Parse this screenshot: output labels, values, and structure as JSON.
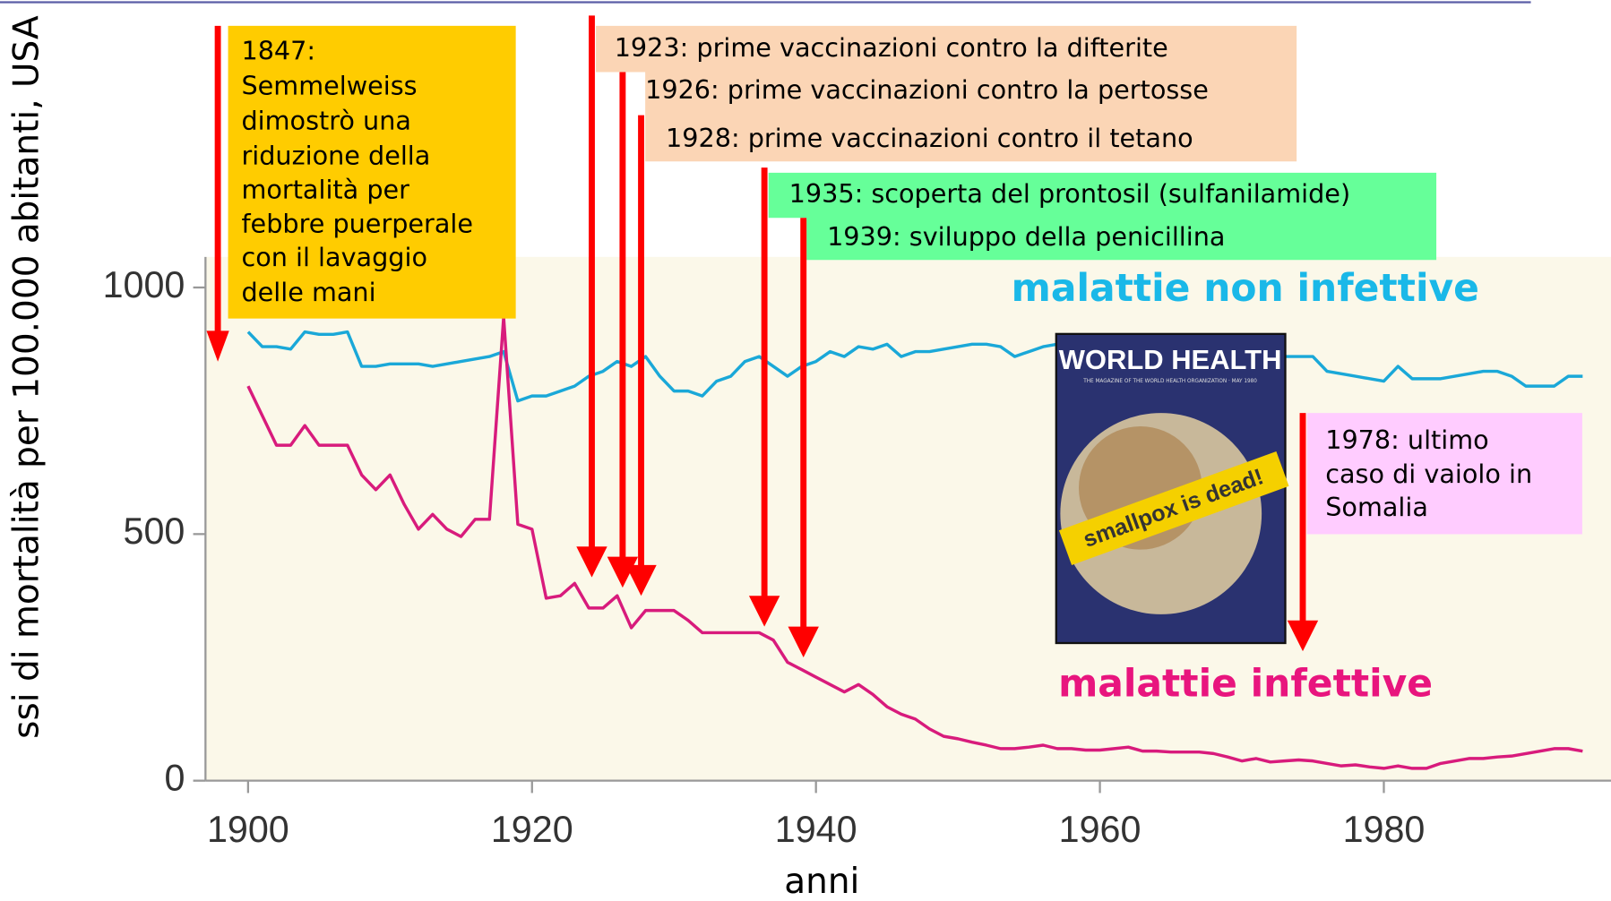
{
  "chart_data": {
    "type": "line",
    "y_label": "ssi di mortalità per 100.000 abitanti, USA",
    "x_label": "anni",
    "x": [
      1900,
      1901,
      1902,
      1903,
      1904,
      1905,
      1906,
      1907,
      1908,
      1909,
      1910,
      1911,
      1912,
      1913,
      1914,
      1915,
      1916,
      1917,
      1918,
      1919,
      1920,
      1921,
      1922,
      1923,
      1924,
      1925,
      1926,
      1927,
      1928,
      1929,
      1930,
      1931,
      1932,
      1933,
      1934,
      1935,
      1936,
      1937,
      1938,
      1939,
      1940,
      1941,
      1942,
      1943,
      1944,
      1945,
      1946,
      1947,
      1948,
      1949,
      1950,
      1951,
      1952,
      1953,
      1954,
      1955,
      1956,
      1957,
      1958,
      1959,
      1960,
      1961,
      1962,
      1963,
      1964,
      1965,
      1966,
      1967,
      1968,
      1969,
      1970,
      1971,
      1972,
      1973,
      1974,
      1975,
      1976,
      1977,
      1978,
      1979,
      1980,
      1981,
      1982,
      1983,
      1984,
      1985,
      1986,
      1987,
      1988,
      1989,
      1990,
      1991,
      1992,
      1993,
      1994
    ],
    "series": [
      {
        "name": "malattie non infettive",
        "color": "#1aa8d8",
        "values": [
          910,
          880,
          880,
          875,
          910,
          905,
          905,
          910,
          840,
          840,
          845,
          845,
          845,
          840,
          845,
          850,
          855,
          860,
          870,
          770,
          780,
          780,
          790,
          800,
          820,
          830,
          850,
          840,
          860,
          820,
          790,
          790,
          780,
          810,
          820,
          850,
          860,
          840,
          820,
          840,
          850,
          870,
          860,
          880,
          875,
          885,
          860,
          870,
          870,
          875,
          880,
          885,
          885,
          880,
          860,
          870,
          880,
          885,
          880,
          880,
          875,
          870,
          870,
          865,
          865,
          860,
          860,
          860,
          860,
          860,
          860,
          860,
          860,
          860,
          860,
          860,
          830,
          825,
          820,
          815,
          810,
          840,
          815,
          815,
          815,
          820,
          825,
          830,
          830,
          820,
          800,
          800,
          800,
          820,
          820
        ]
      },
      {
        "name": "malattie infettive",
        "color": "#d81b7c",
        "values": [
          800,
          740,
          680,
          680,
          720,
          680,
          680,
          680,
          620,
          590,
          620,
          560,
          510,
          540,
          510,
          495,
          530,
          530,
          940,
          520,
          510,
          370,
          375,
          400,
          350,
          350,
          375,
          310,
          345,
          345,
          345,
          325,
          300,
          300,
          300,
          300,
          300,
          285,
          240,
          225,
          210,
          195,
          180,
          195,
          175,
          150,
          135,
          125,
          105,
          90,
          85,
          78,
          72,
          65,
          65,
          68,
          72,
          65,
          65,
          62,
          62,
          65,
          68,
          60,
          60,
          58,
          58,
          58,
          55,
          48,
          40,
          45,
          38,
          40,
          42,
          40,
          35,
          30,
          32,
          28,
          25,
          30,
          25,
          25,
          35,
          40,
          45,
          45,
          48,
          50,
          55,
          60,
          65,
          65,
          60
        ]
      }
    ],
    "xlim": [
      1897,
      1996
    ],
    "xticks": [
      1900,
      1920,
      1940,
      1960,
      1980
    ],
    "ylim": [
      0,
      1062
    ],
    "yticks": [
      0,
      500,
      1000
    ],
    "annotations": [
      {
        "lines": [
          "1847:",
          "Semmelweiss",
          "dimostrò una",
          "riduzione della",
          "mortalità per",
          "febbre puerperale",
          "con il lavaggio",
          "delle mani"
        ]
      },
      {
        "lines": [
          "1923: prime vaccinazioni contro la difterite",
          "1926: prime vaccinazioni contro la pertosse",
          "1928: prime vaccinazioni contro il tetano"
        ]
      },
      {
        "lines": [
          "1935: scoperta del prontosil (sulfanilamide)",
          "1939: sviluppo della penicillina"
        ]
      },
      {
        "lines": [
          "1978: ultimo",
          "caso di vaiolo in",
          "Somalia"
        ]
      }
    ]
  },
  "cover": {
    "title": "WORLD HEALTH",
    "subtitle": "THE MAGAZINE OF THE WORLD HEALTH ORGANIZATION · MAY 1980",
    "banner": "smallpox is dead!"
  }
}
